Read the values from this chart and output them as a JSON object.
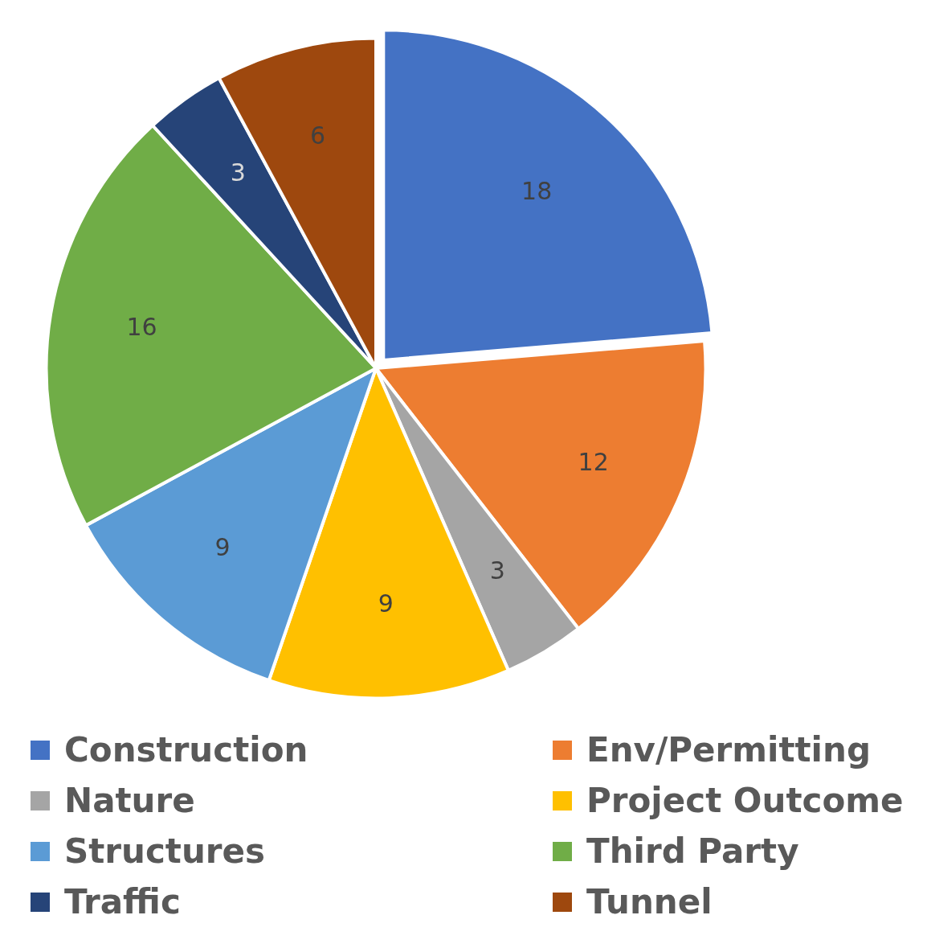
{
  "chart_data": {
    "type": "pie",
    "categories": [
      "Construction",
      "Env/Permitting",
      "Nature",
      "Project Outcome",
      "Structures",
      "Third Party",
      "Traffic",
      "Tunnel"
    ],
    "values": [
      18,
      12,
      3,
      9,
      9,
      16,
      3,
      6
    ],
    "colors": [
      "#4472c4",
      "#ed7d31",
      "#a5a5a5",
      "#ffc000",
      "#5b9bd5",
      "#70ad47",
      "#264478",
      "#9e480e"
    ],
    "data_labels": true,
    "legend": "bottom"
  }
}
